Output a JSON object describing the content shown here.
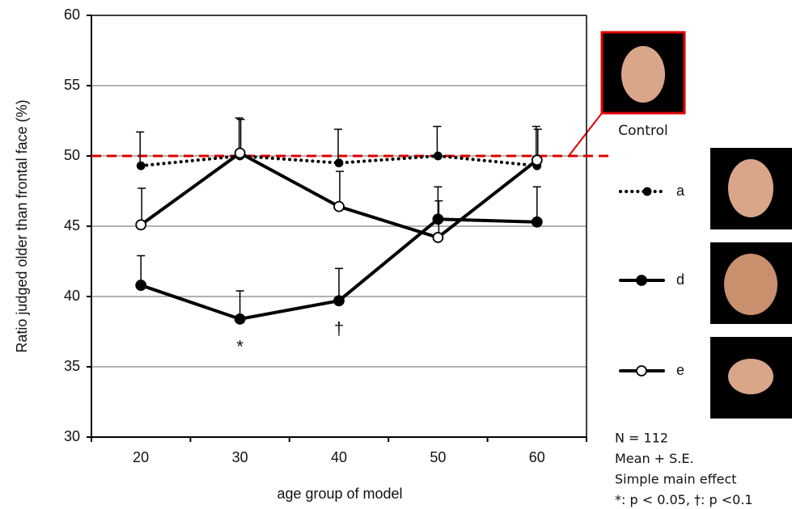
{
  "chart_data": {
    "type": "line",
    "ylabel": "Ratio judged older than frontal face (%)",
    "xlabel": "age group of model",
    "categories": [
      "20",
      "30",
      "40",
      "50",
      "60"
    ],
    "ylim": [
      30,
      60
    ],
    "yticks": [
      30,
      35,
      40,
      45,
      50,
      55,
      60
    ],
    "grid": true,
    "reference_line": {
      "value": 50,
      "label": "Control",
      "color": "#e00000"
    },
    "series": [
      {
        "name": "a",
        "color": "#000000",
        "style": "dotted",
        "marker": "filled",
        "values": [
          49.3,
          50.0,
          49.5,
          50.0,
          49.3
        ],
        "errors": [
          2.4,
          2.7,
          2.4,
          2.1,
          2.8
        ]
      },
      {
        "name": "d",
        "color": "#000000",
        "style": "solid",
        "marker": "filled",
        "values": [
          40.8,
          38.4,
          39.7,
          45.5,
          45.3
        ],
        "errors": [
          2.1,
          2.0,
          2.3,
          2.3,
          2.5
        ]
      },
      {
        "name": "e",
        "color": "#000000",
        "style": "solid",
        "marker": "open",
        "values": [
          45.1,
          50.2,
          46.4,
          44.2,
          49.7
        ],
        "errors": [
          2.6,
          2.4,
          2.5,
          2.6,
          2.2
        ]
      }
    ],
    "annotations": [
      {
        "label": "*",
        "category": "30"
      },
      {
        "label": "†",
        "category": "40"
      }
    ],
    "notes": [
      "N = 112",
      "Mean + S.E.",
      "Simple main effect",
      "*: p < 0.05, †: p <0.1"
    ]
  }
}
